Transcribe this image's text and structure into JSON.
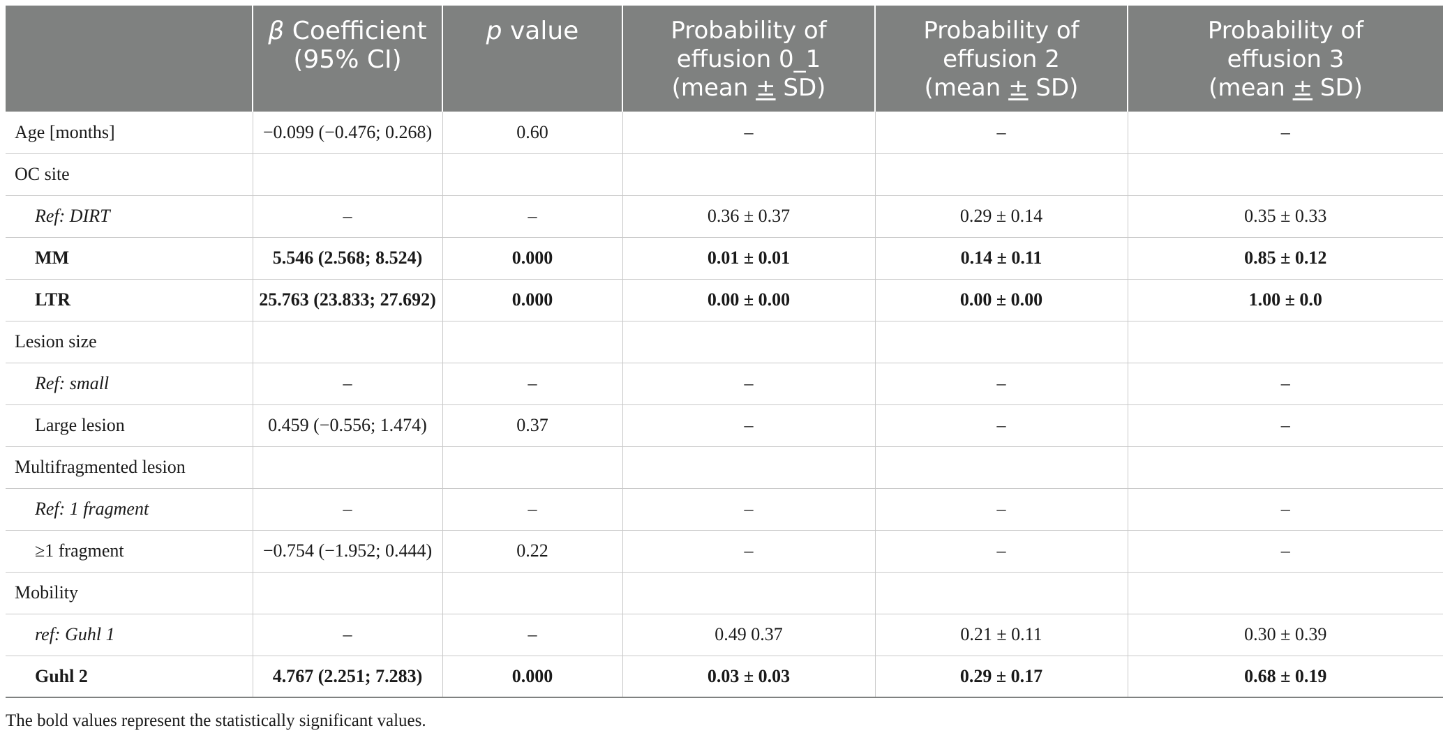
{
  "table": {
    "headers": [
      {
        "prefix": "",
        "italic": "",
        "text": ""
      },
      {
        "prefix": "",
        "italic": "β",
        "text": " Coefficient (95% CI)"
      },
      {
        "prefix": "",
        "italic": "p",
        "text": " value"
      },
      {
        "lines": [
          "Probability of",
          "effusion 0_1",
          "(mean ",
          "±",
          " SD)"
        ]
      },
      {
        "lines": [
          "Probability of",
          "effusion 2",
          "(mean ",
          "±",
          " SD)"
        ]
      },
      {
        "lines": [
          "Probability of",
          "effusion 3",
          "(mean ",
          "±",
          " SD)"
        ]
      }
    ],
    "rows": [
      {
        "label": "Age [months]",
        "style": "normal",
        "cells": [
          "−0.099 (−0.476; 0.268)",
          "0.60",
          "–",
          "–",
          "–"
        ]
      },
      {
        "label": "OC site",
        "style": "group",
        "cells": [
          "",
          "",
          "",
          "",
          ""
        ]
      },
      {
        "label": "Ref: DIRT",
        "style": "ref",
        "cells": [
          "–",
          "–",
          "0.36 ± 0.37",
          "0.29 ± 0.14",
          "0.35 ± 0.33"
        ]
      },
      {
        "label": "MM",
        "style": "bold",
        "cells": [
          "5.546 (2.568; 8.524)",
          "0.000",
          "0.01 ± 0.01",
          "0.14 ± 0.11",
          "0.85 ± 0.12"
        ]
      },
      {
        "label": "LTR",
        "style": "bold",
        "cells": [
          "25.763 (23.833; 27.692)",
          "0.000",
          "0.00 ± 0.00",
          "0.00 ± 0.00",
          "1.00 ± 0.0"
        ]
      },
      {
        "label": "Lesion size",
        "style": "group",
        "cells": [
          "",
          "",
          "",
          "",
          ""
        ]
      },
      {
        "label": "Ref: small",
        "style": "ref",
        "cells": [
          "–",
          "–",
          "–",
          "–",
          "–"
        ]
      },
      {
        "label": "Large lesion",
        "style": "indent",
        "cells": [
          "0.459 (−0.556; 1.474)",
          "0.37",
          "–",
          "–",
          "–"
        ]
      },
      {
        "label": "Multifragmented lesion",
        "style": "group",
        "cells": [
          "",
          "",
          "",
          "",
          ""
        ]
      },
      {
        "label": "Ref: 1 fragment",
        "style": "ref",
        "cells": [
          "–",
          "–",
          "–",
          "–",
          "–"
        ]
      },
      {
        "label": "≥1 fragment",
        "style": "indent",
        "cells": [
          "−0.754 (−1.952; 0.444)",
          "0.22",
          "–",
          "–",
          "–"
        ]
      },
      {
        "label": "Mobility",
        "style": "group",
        "cells": [
          "",
          "",
          "",
          "",
          ""
        ]
      },
      {
        "label": "ref: Guhl 1",
        "style": "ref",
        "cells": [
          "–",
          "–",
          "0.49 0.37",
          "0.21 ± 0.11",
          "0.30 ± 0.39"
        ]
      },
      {
        "label": "Guhl 2",
        "style": "bold",
        "cells": [
          "4.767 (2.251; 7.283)",
          "0.000",
          "0.03 ± 0.03",
          "0.29 ± 0.17",
          "0.68 ± 0.19"
        ]
      }
    ]
  },
  "footnote": "The bold values represent the statistically significant values."
}
